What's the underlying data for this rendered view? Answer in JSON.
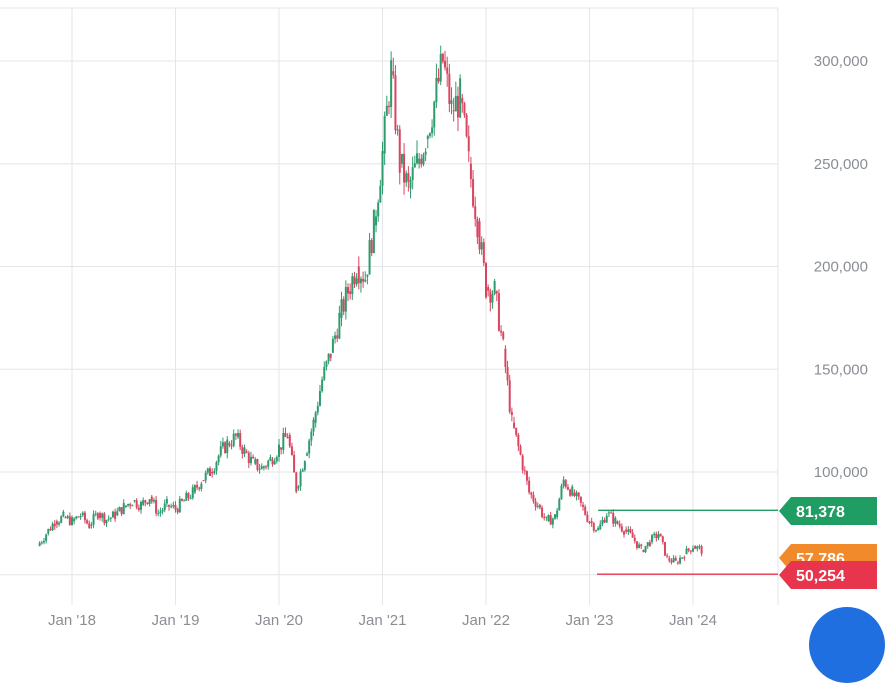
{
  "colors": {
    "up": "#2e9a6e",
    "down": "#d9445f",
    "grid": "#e4e6ea",
    "axis_text": "#8a8e94",
    "badge_green": "#1f9d62",
    "badge_orange": "#f08a2b",
    "badge_red": "#e8354e",
    "fab": "#1f6fe0"
  },
  "chart_data": {
    "type": "candlestick",
    "x_unit": "date",
    "y_range": [
      45000,
      310000
    ],
    "y_ticks": [
      {
        "value": 100000,
        "label": "100,000"
      },
      {
        "value": 150000,
        "label": "150,000"
      },
      {
        "value": 200000,
        "label": "200,000"
      },
      {
        "value": 250000,
        "label": "250,000"
      },
      {
        "value": 300000,
        "label": "300,000"
      }
    ],
    "x_ticks": [
      {
        "date": "2018-01",
        "label": "Jan '18"
      },
      {
        "date": "2019-01",
        "label": "Jan '19"
      },
      {
        "date": "2020-01",
        "label": "Jan '20"
      },
      {
        "date": "2021-01",
        "label": "Jan '21"
      },
      {
        "date": "2022-01",
        "label": "Jan '22"
      },
      {
        "date": "2023-01",
        "label": "Jan '23"
      },
      {
        "date": "2024-01",
        "label": "Jan '24"
      }
    ],
    "series_close": [
      [
        "2017-09",
        64000
      ],
      [
        "2017-10",
        70000
      ],
      [
        "2017-11",
        76000
      ],
      [
        "2017-12",
        78000
      ],
      [
        "2018-01",
        76000
      ],
      [
        "2018-02",
        79000
      ],
      [
        "2018-03",
        74000
      ],
      [
        "2018-04",
        80000
      ],
      [
        "2018-05",
        77000
      ],
      [
        "2018-06",
        79000
      ],
      [
        "2018-07",
        83000
      ],
      [
        "2018-08",
        86000
      ],
      [
        "2018-09",
        84000
      ],
      [
        "2018-10",
        88000
      ],
      [
        "2018-11",
        80000
      ],
      [
        "2018-12",
        84000
      ],
      [
        "2019-01",
        82000
      ],
      [
        "2019-02",
        86000
      ],
      [
        "2019-03",
        90000
      ],
      [
        "2019-04",
        96000
      ],
      [
        "2019-05",
        100000
      ],
      [
        "2019-06",
        108000
      ],
      [
        "2019-07",
        114000
      ],
      [
        "2019-08",
        117000
      ],
      [
        "2019-09",
        110000
      ],
      [
        "2019-10",
        104000
      ],
      [
        "2019-11",
        102000
      ],
      [
        "2019-12",
        106000
      ],
      [
        "2020-01",
        112000
      ],
      [
        "2020-02",
        118000
      ],
      [
        "2020-03",
        92000
      ],
      [
        "2020-04",
        108000
      ],
      [
        "2020-05",
        124000
      ],
      [
        "2020-06",
        145000
      ],
      [
        "2020-07",
        158000
      ],
      [
        "2020-08",
        175000
      ],
      [
        "2020-09",
        188000
      ],
      [
        "2020-10",
        200000
      ],
      [
        "2020-11",
        195000
      ],
      [
        "2020-12",
        220000
      ],
      [
        "2021-01",
        255000
      ],
      [
        "2021-02",
        295000
      ],
      [
        "2021-03",
        250000
      ],
      [
        "2021-04",
        238000
      ],
      [
        "2021-05",
        250000
      ],
      [
        "2021-06",
        262000
      ],
      [
        "2021-07",
        280000
      ],
      [
        "2021-08",
        300000
      ],
      [
        "2021-09",
        276000
      ],
      [
        "2021-10",
        282000
      ],
      [
        "2021-11",
        250000
      ],
      [
        "2021-12",
        222000
      ],
      [
        "2022-01",
        190000
      ],
      [
        "2022-02",
        188000
      ],
      [
        "2022-03",
        160000
      ],
      [
        "2022-04",
        124000
      ],
      [
        "2022-05",
        108000
      ],
      [
        "2022-06",
        90000
      ],
      [
        "2022-07",
        84000
      ],
      [
        "2022-08",
        76000
      ],
      [
        "2022-09",
        78000
      ],
      [
        "2022-10",
        96000
      ],
      [
        "2022-11",
        90000
      ],
      [
        "2022-12",
        84000
      ],
      [
        "2023-01",
        76000
      ],
      [
        "2023-02",
        72000
      ],
      [
        "2023-03",
        80000
      ],
      [
        "2023-04",
        76000
      ],
      [
        "2023-05",
        72000
      ],
      [
        "2023-06",
        68000
      ],
      [
        "2023-07",
        62000
      ],
      [
        "2023-08",
        66000
      ],
      [
        "2023-09",
        70000
      ],
      [
        "2023-10",
        58000
      ],
      [
        "2023-11",
        56000
      ],
      [
        "2023-12",
        60000
      ],
      [
        "2024-01",
        64000
      ],
      [
        "2024-02",
        62000
      ]
    ],
    "reference_lines": [
      {
        "value": 81378,
        "label": "81,378",
        "color": "#1f9d62"
      },
      {
        "value": 57786,
        "label": "57,786",
        "color": "#f08a2b"
      },
      {
        "value": 50254,
        "label": "50,254",
        "color": "#e8354e"
      }
    ]
  }
}
